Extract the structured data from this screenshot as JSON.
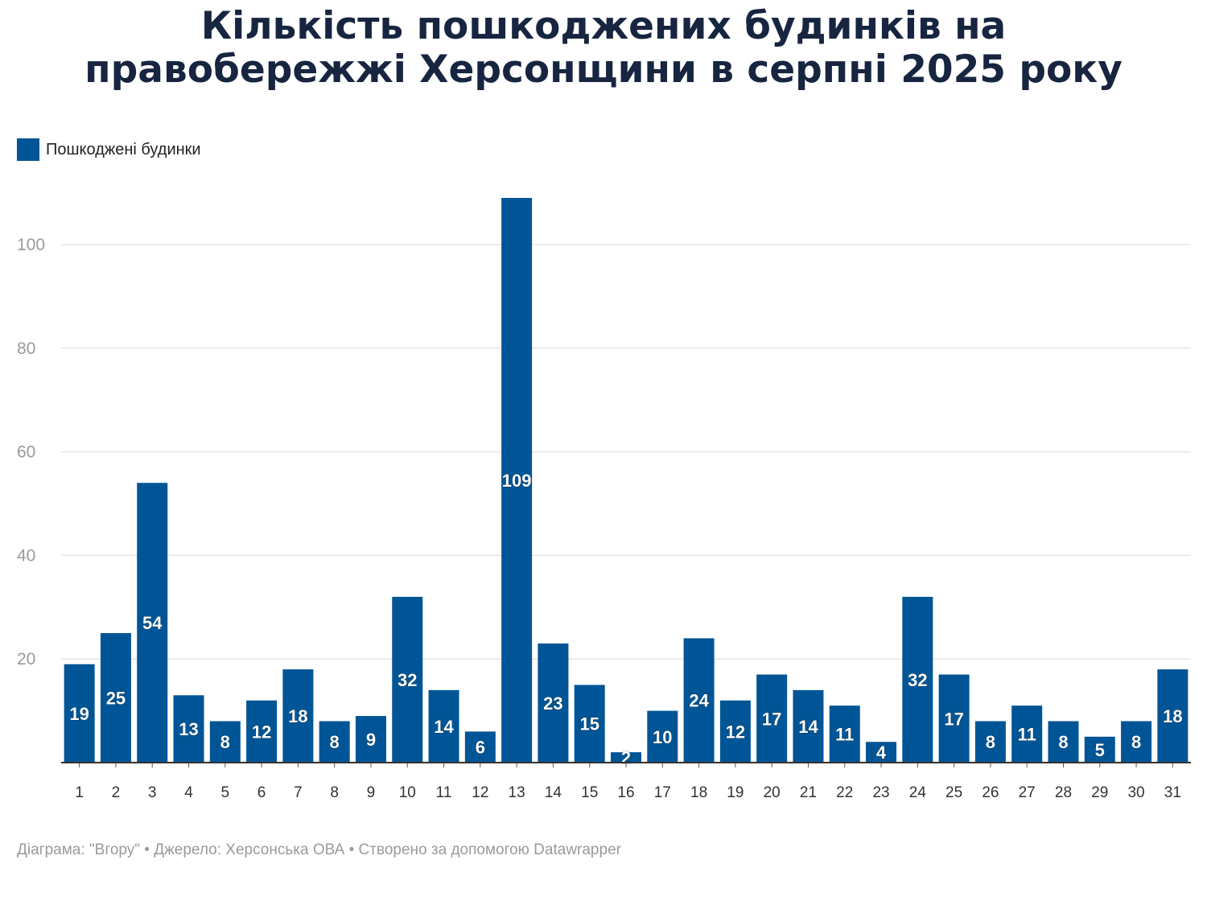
{
  "title_lines": [
    "Кількість пошкоджених будинків на",
    "правобережжі Херсонщини в серпні 2025 року"
  ],
  "footer": "Діаграма: \"Вгору\" • Джерело: Херсонська ОВА • Створено за допомогою Datawrapper",
  "colors": {
    "bar": "#005596",
    "title": "#172540",
    "grid": "#e5e5e5",
    "axis_text": "#9a9a9a"
  },
  "chart_data": {
    "type": "bar",
    "categories": [
      "1",
      "2",
      "3",
      "4",
      "5",
      "6",
      "7",
      "8",
      "9",
      "10",
      "11",
      "12",
      "13",
      "14",
      "15",
      "16",
      "17",
      "18",
      "19",
      "20",
      "21",
      "22",
      "23",
      "24",
      "25",
      "26",
      "27",
      "28",
      "29",
      "30",
      "31"
    ],
    "series": [
      {
        "name": "Пошкоджені будинки",
        "values": [
          19,
          25,
          54,
          13,
          8,
          12,
          18,
          8,
          9,
          32,
          14,
          6,
          109,
          23,
          15,
          2,
          10,
          24,
          12,
          17,
          14,
          11,
          4,
          32,
          17,
          8,
          11,
          8,
          5,
          8,
          18
        ]
      }
    ],
    "yticks": [
      "20",
      "40",
      "60",
      "80",
      "100"
    ],
    "ylim": [
      0,
      110
    ],
    "grid": true,
    "legend_position": "top-left",
    "data_labels": true
  }
}
